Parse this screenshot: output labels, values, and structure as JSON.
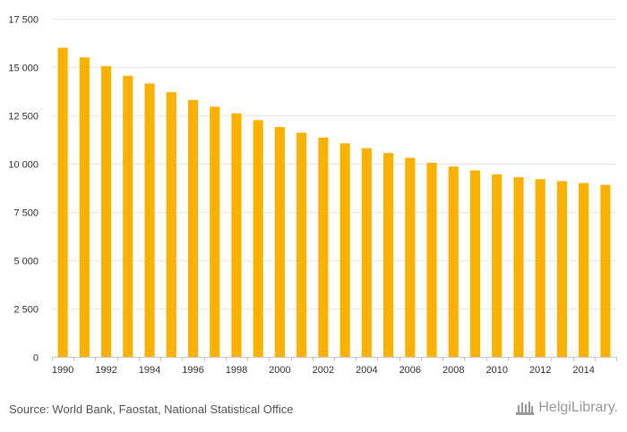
{
  "colors": {
    "bar": "#FBB100",
    "grid": "#e6e6e6",
    "text": "#333333",
    "footer": "#555555",
    "brand": "#9a9a9a"
  },
  "footer": {
    "source": "Source: World Bank, Faostat, National Statistical Office",
    "brand": "HelgiLibrary.",
    "brand_icon": "helgi-library-logo-icon"
  },
  "chart_data": {
    "type": "bar",
    "title": "",
    "xlabel": "",
    "ylabel": "",
    "grid": true,
    "ylim": [
      0,
      17500
    ],
    "yticks": [
      0,
      2500,
      5000,
      7500,
      10000,
      12500,
      15000,
      17500
    ],
    "ytick_labels": [
      "0",
      "2 500",
      "5 000",
      "7 500",
      "10 000",
      "12 500",
      "15 000",
      "17 500"
    ],
    "categories": [
      "1990",
      "1991",
      "1992",
      "1993",
      "1994",
      "1995",
      "1996",
      "1997",
      "1998",
      "1999",
      "2000",
      "2001",
      "2002",
      "2003",
      "2004",
      "2005",
      "2006",
      "2007",
      "2008",
      "2009",
      "2010",
      "2011",
      "2012",
      "2013",
      "2014",
      "2015"
    ],
    "xtick_labels": [
      "1990",
      "",
      "1992",
      "",
      "1994",
      "",
      "1996",
      "",
      "1998",
      "",
      "2000",
      "",
      "2002",
      "",
      "2004",
      "",
      "2006",
      "",
      "2008",
      "",
      "2010",
      "",
      "2012",
      "",
      "2014",
      ""
    ],
    "values": [
      16000,
      15500,
      15050,
      14550,
      14150,
      13700,
      13300,
      12950,
      12600,
      12250,
      11900,
      11600,
      11350,
      11050,
      10800,
      10550,
      10300,
      10050,
      9850,
      9650,
      9450,
      9300,
      9200,
      9100,
      9000,
      8900
    ]
  }
}
